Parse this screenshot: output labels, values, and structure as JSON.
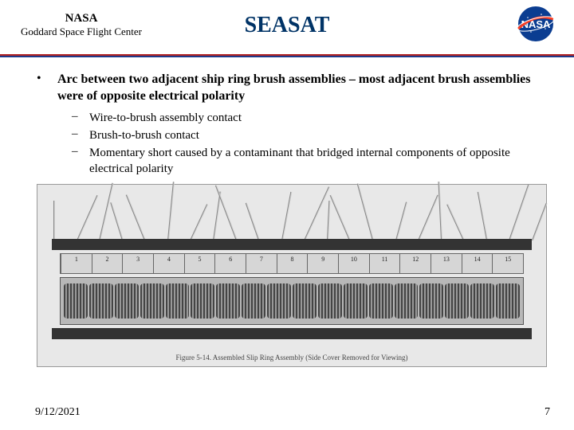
{
  "header": {
    "org_name": "NASA",
    "org_sub": "Goddard Space Flight Center",
    "title": "SEASAT",
    "logo_name": "nasa-meatball",
    "title_color": "#003366",
    "separator_top_color": "#b22222",
    "separator_bottom_color": "#1e3a8a"
  },
  "main_bullet": {
    "marker": "•",
    "text": "Arc between two adjacent ship ring brush assemblies – most adjacent brush assemblies were of opposite electrical polarity"
  },
  "sub_bullets": {
    "marker": "–",
    "items": [
      "Wire-to-brush assembly contact",
      "Brush-to-brush contact",
      "Momentary short caused by a contaminant that bridged internal components of opposite electrical polarity"
    ]
  },
  "figure": {
    "ruler_ticks": [
      "1",
      "2",
      "3",
      "4",
      "5",
      "6",
      "7",
      "8",
      "9",
      "10",
      "11",
      "12",
      "13",
      "14",
      "15"
    ],
    "gear_count": 18,
    "wire_count": 22,
    "caption": "Figure 5-14.  Assembled Slip Ring Assembly (Side Cover Removed for Viewing)",
    "background": "#e8e8e8"
  },
  "footer": {
    "date": "9/12/2021",
    "page": "7"
  }
}
